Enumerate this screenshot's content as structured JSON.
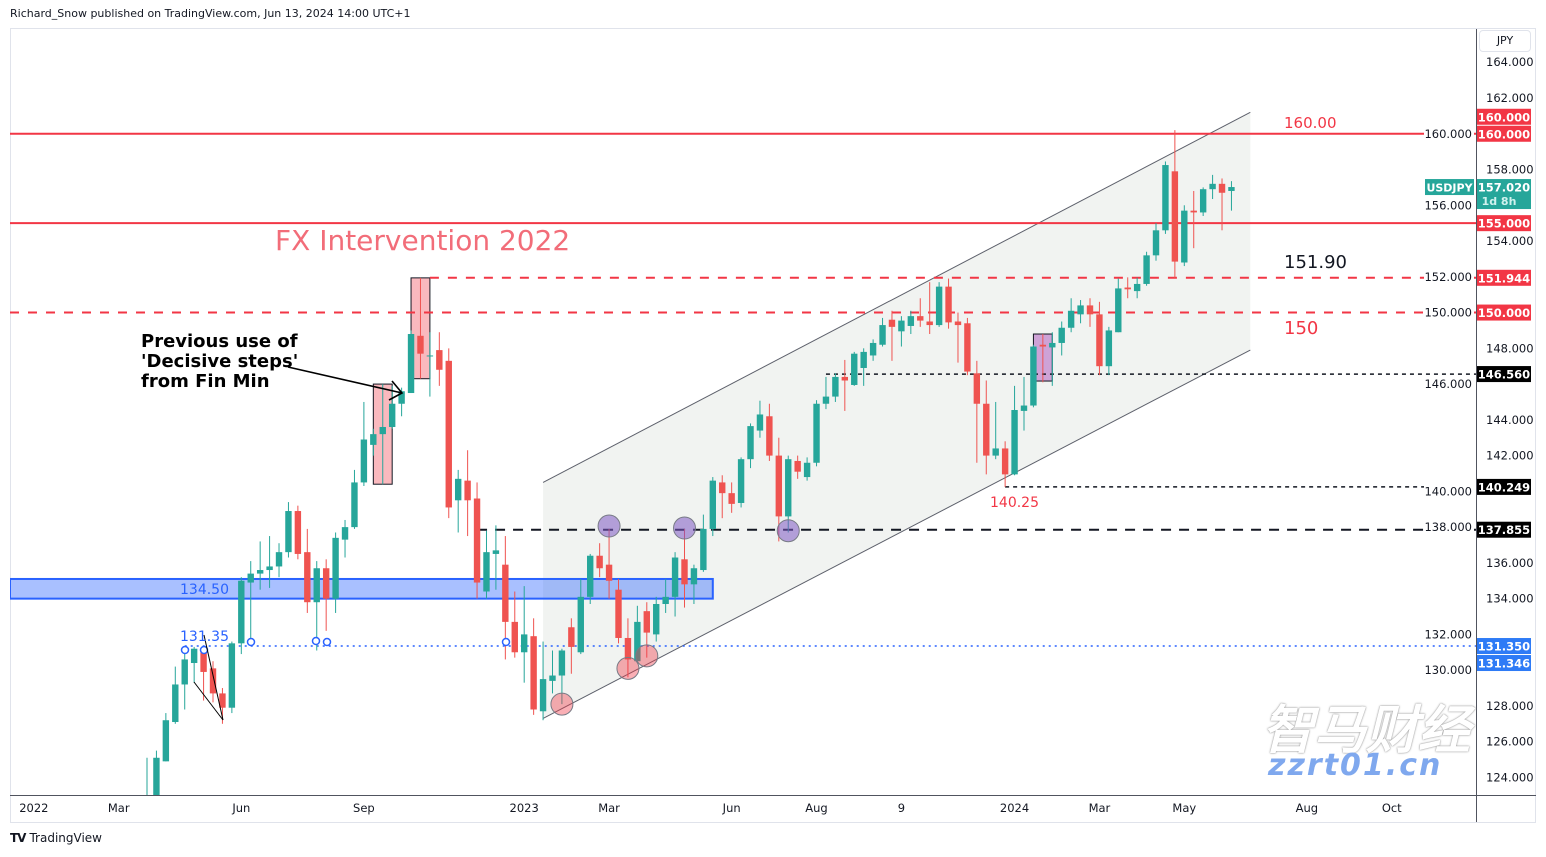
{
  "header": {
    "published": "Richard_Snow published on TradingView.com, Jun 13, 2024 14:00 UTC+1"
  },
  "footer": {
    "brand": "TradingView"
  },
  "watermark": {
    "text": "智马财经",
    "url": "zzrt01.cn"
  },
  "currency_button": "JPY",
  "colors": {
    "up": "#26a69a",
    "down": "#ef5350",
    "level_red": "#f23645",
    "support_blue": "#2962ff",
    "channel_fill": "#eef1ef"
  },
  "chart_data": {
    "type": "candlestick",
    "symbol": "USDJPY",
    "interval": "weekly",
    "ylim": [
      123,
      165
    ],
    "y_ticks": [
      124,
      126,
      128,
      130,
      132,
      134,
      136,
      138,
      140,
      142,
      144,
      146,
      148,
      150,
      152,
      154,
      156,
      158,
      160,
      162,
      164
    ],
    "x_ticks": [
      {
        "label": "2022",
        "date": "2022-01-03"
      },
      {
        "label": "Mar",
        "date": "2022-03-07"
      },
      {
        "label": "Jun",
        "date": "2022-06-06"
      },
      {
        "label": "Sep",
        "date": "2022-09-05"
      },
      {
        "label": "2023",
        "date": "2023-01-02"
      },
      {
        "label": "Mar",
        "date": "2023-03-06"
      },
      {
        "label": "Jun",
        "date": "2023-06-05"
      },
      {
        "label": "Aug",
        "date": "2023-08-07"
      },
      {
        "label": "9",
        "date": "2023-10-09"
      },
      {
        "label": "2024",
        "date": "2024-01-01"
      },
      {
        "label": "Mar",
        "date": "2024-03-04"
      },
      {
        "label": "May",
        "date": "2024-05-06"
      },
      {
        "label": "Aug",
        "date": "2024-08-05"
      },
      {
        "label": "Oct",
        "date": "2024-10-07"
      }
    ],
    "candles": [
      [
        "2022-03-28",
        119.5,
        125.1,
        119.1,
        122.1
      ],
      [
        "2022-04-04",
        122.1,
        125.5,
        121.6,
        125.1
      ],
      [
        "2022-04-11",
        124.9,
        127.6,
        124.9,
        127.2
      ],
      [
        "2022-04-18",
        127.1,
        130.2,
        127.0,
        129.2
      ],
      [
        "2022-04-25",
        129.2,
        131.3,
        127.8,
        130.6
      ],
      [
        "2022-05-02",
        130.4,
        131.3,
        129.3,
        131.2
      ],
      [
        "2022-05-09",
        131.0,
        131.35,
        128.3,
        129.9
      ],
      [
        "2022-05-16",
        130.1,
        130.5,
        128.2,
        128.7
      ],
      [
        "2022-05-23",
        128.7,
        129.0,
        127.0,
        127.9
      ],
      [
        "2022-05-30",
        127.9,
        131.6,
        127.6,
        131.5
      ],
      [
        "2022-06-06",
        131.5,
        135.2,
        130.9,
        135.0
      ],
      [
        "2022-06-13",
        134.9,
        136.1,
        131.5,
        135.4
      ],
      [
        "2022-06-20",
        135.4,
        137.2,
        134.5,
        135.6
      ],
      [
        "2022-06-27",
        135.6,
        137.5,
        134.6,
        135.8
      ],
      [
        "2022-07-04",
        135.8,
        137.1,
        135.2,
        136.6
      ],
      [
        "2022-07-11",
        136.6,
        139.4,
        136.3,
        138.9
      ],
      [
        "2022-07-18",
        138.9,
        139.2,
        136.2,
        136.5
      ],
      [
        "2022-07-25",
        136.6,
        137.9,
        133.2,
        133.8
      ],
      [
        "2022-08-01",
        133.8,
        136.1,
        131.1,
        135.7
      ],
      [
        "2022-08-08",
        135.7,
        136.2,
        132.2,
        134.0
      ],
      [
        "2022-08-15",
        134.0,
        137.7,
        133.2,
        137.4
      ],
      [
        "2022-08-22",
        137.3,
        138.4,
        136.3,
        138.0
      ],
      [
        "2022-08-29",
        138.0,
        141.2,
        137.9,
        140.5
      ],
      [
        "2022-09-05",
        140.5,
        145.0,
        140.3,
        142.9
      ],
      [
        "2022-09-12",
        142.6,
        143.5,
        142.0,
        143.2
      ],
      [
        "2022-09-19",
        143.2,
        146.0,
        140.4,
        143.6
      ],
      [
        "2022-09-26",
        143.6,
        145.9,
        143.5,
        144.9
      ],
      [
        "2022-10-03",
        144.9,
        145.8,
        144.2,
        145.6
      ],
      [
        "2022-10-10",
        145.5,
        149.0,
        145.5,
        148.8
      ],
      [
        "2022-10-17",
        148.7,
        151.94,
        146.3,
        147.7
      ],
      [
        "2022-10-24",
        147.6,
        148.9,
        145.3,
        147.6
      ],
      [
        "2022-10-31",
        147.9,
        148.9,
        145.9,
        146.8
      ],
      [
        "2022-11-07",
        147.3,
        148.0,
        138.5,
        139.1
      ],
      [
        "2022-11-14",
        139.5,
        141.2,
        137.7,
        140.7
      ],
      [
        "2022-11-21",
        140.6,
        142.3,
        137.5,
        139.5
      ],
      [
        "2022-11-28",
        139.6,
        140.5,
        134.0,
        134.9
      ],
      [
        "2022-12-05",
        134.4,
        137.8,
        134.0,
        136.6
      ],
      [
        "2022-12-12",
        136.5,
        138.1,
        134.5,
        136.7
      ],
      [
        "2022-12-19",
        135.9,
        137.5,
        130.6,
        132.7
      ],
      [
        "2022-12-26",
        132.7,
        134.4,
        130.7,
        131.0
      ],
      [
        "2023-01-02",
        131.0,
        134.7,
        129.3,
        132.0
      ],
      [
        "2023-01-09",
        131.9,
        132.9,
        127.5,
        127.8
      ],
      [
        "2023-01-16",
        127.7,
        131.6,
        127.2,
        129.5
      ],
      [
        "2023-01-23",
        129.4,
        131.1,
        128.7,
        129.7
      ],
      [
        "2023-01-30",
        129.7,
        131.2,
        128.1,
        131.1
      ],
      [
        "2023-02-06",
        132.4,
        132.9,
        129.8,
        131.3
      ],
      [
        "2023-02-13",
        131.0,
        135.1,
        130.9,
        134.1
      ],
      [
        "2023-02-20",
        134.1,
        136.5,
        133.7,
        136.4
      ],
      [
        "2023-02-27",
        136.4,
        137.1,
        135.2,
        135.7
      ],
      [
        "2023-03-06",
        135.9,
        137.9,
        134.0,
        135.0
      ],
      [
        "2023-03-13",
        134.5,
        135.1,
        131.5,
        131.8
      ],
      [
        "2023-03-20",
        131.8,
        132.9,
        129.6,
        130.6
      ],
      [
        "2023-03-27",
        130.5,
        133.6,
        130.4,
        132.7
      ],
      [
        "2023-04-03",
        133.3,
        133.8,
        130.7,
        132.1
      ],
      [
        "2023-04-10",
        132.0,
        134.1,
        131.6,
        133.7
      ],
      [
        "2023-04-17",
        133.7,
        135.1,
        133.2,
        134.1
      ],
      [
        "2023-04-24",
        134.1,
        136.6,
        133.0,
        136.3
      ],
      [
        "2023-05-01",
        136.2,
        137.9,
        133.5,
        134.8
      ],
      [
        "2023-05-08",
        134.8,
        135.9,
        133.7,
        135.7
      ],
      [
        "2023-05-15",
        135.6,
        138.7,
        135.5,
        137.9
      ],
      [
        "2023-05-22",
        137.9,
        140.8,
        137.5,
        140.6
      ],
      [
        "2023-05-29",
        140.5,
        140.9,
        138.5,
        139.9
      ],
      [
        "2023-06-05",
        139.9,
        140.5,
        138.8,
        139.3
      ],
      [
        "2023-06-12",
        139.35,
        141.9,
        139.1,
        141.8
      ],
      [
        "2023-06-19",
        141.8,
        143.8,
        141.3,
        143.65
      ],
      [
        "2023-06-26",
        143.4,
        145.07,
        143.0,
        144.3
      ],
      [
        "2023-07-03",
        144.2,
        144.9,
        141.7,
        142.0
      ],
      [
        "2023-07-10",
        142.0,
        143.0,
        137.2,
        138.6
      ],
      [
        "2023-07-17",
        138.6,
        142.0,
        137.7,
        141.8
      ],
      [
        "2023-07-24",
        141.7,
        142.0,
        140.7,
        141.1
      ],
      [
        "2023-07-31",
        140.8,
        141.9,
        140.6,
        141.6
      ],
      [
        "2023-08-07",
        141.6,
        145.1,
        141.4,
        144.9
      ],
      [
        "2023-08-14",
        144.9,
        146.4,
        144.6,
        145.3
      ],
      [
        "2023-08-21",
        145.3,
        146.6,
        145.0,
        146.4
      ],
      [
        "2023-08-28",
        146.4,
        147.35,
        144.5,
        146.2
      ],
      [
        "2023-09-04",
        145.95,
        147.8,
        145.9,
        147.7
      ],
      [
        "2023-09-11",
        146.9,
        148.0,
        145.9,
        147.8
      ],
      [
        "2023-09-18",
        147.6,
        148.5,
        147.3,
        148.3
      ],
      [
        "2023-09-25",
        148.2,
        149.7,
        148.1,
        149.3
      ],
      [
        "2023-10-02",
        149.6,
        150.1,
        147.3,
        149.2
      ],
      [
        "2023-10-09",
        148.95,
        149.8,
        148.1,
        149.55
      ],
      [
        "2023-10-16",
        149.25,
        150.1,
        148.8,
        149.8
      ],
      [
        "2023-10-23",
        149.8,
        150.8,
        149.2,
        149.55
      ],
      [
        "2023-10-30",
        149.5,
        151.7,
        148.8,
        149.3
      ],
      [
        "2023-11-06",
        149.3,
        151.7,
        149.2,
        151.45
      ],
      [
        "2023-11-13",
        151.45,
        151.9,
        149.1,
        149.45
      ],
      [
        "2023-11-20",
        149.5,
        150.0,
        147.2,
        149.3
      ],
      [
        "2023-11-27",
        149.4,
        149.7,
        146.5,
        146.7
      ],
      [
        "2023-12-04",
        146.6,
        147.3,
        141.6,
        144.9
      ],
      [
        "2023-12-11",
        144.9,
        146.2,
        140.95,
        142.0
      ],
      [
        "2023-12-18",
        142.0,
        145.0,
        141.8,
        142.4
      ],
      [
        "2023-12-25",
        142.4,
        142.8,
        140.25,
        140.95
      ],
      [
        "2024-01-01",
        140.95,
        145.9,
        140.9,
        144.55
      ],
      [
        "2024-01-08",
        144.5,
        146.4,
        143.4,
        144.8
      ],
      [
        "2024-01-15",
        144.8,
        148.2,
        144.7,
        148.1
      ],
      [
        "2024-01-22",
        148.2,
        148.8,
        146.1,
        148.1
      ],
      [
        "2024-01-29",
        148.05,
        148.9,
        145.9,
        148.3
      ],
      [
        "2024-02-05",
        148.3,
        149.5,
        147.6,
        149.15
      ],
      [
        "2024-02-12",
        149.15,
        150.8,
        148.9,
        150.1
      ],
      [
        "2024-02-19",
        149.9,
        150.7,
        149.4,
        150.4
      ],
      [
        "2024-02-26",
        150.4,
        150.8,
        149.2,
        149.9
      ],
      [
        "2024-03-04",
        149.9,
        150.6,
        146.5,
        147.0
      ],
      [
        "2024-03-11",
        147.0,
        149.2,
        146.5,
        149.0
      ],
      [
        "2024-03-18",
        148.9,
        151.9,
        148.9,
        151.35
      ],
      [
        "2024-03-25",
        151.4,
        151.97,
        150.8,
        151.3
      ],
      [
        "2024-04-01",
        151.2,
        151.95,
        150.8,
        151.6
      ],
      [
        "2024-04-08",
        151.6,
        153.4,
        151.5,
        153.2
      ],
      [
        "2024-04-15",
        153.2,
        155.0,
        152.9,
        154.6
      ],
      [
        "2024-04-22",
        154.6,
        158.45,
        154.4,
        158.25
      ],
      [
        "2024-04-29",
        157.9,
        160.2,
        151.9,
        152.85
      ],
      [
        "2024-05-06",
        152.8,
        156.0,
        152.6,
        155.7
      ],
      [
        "2024-05-13",
        155.7,
        156.8,
        153.6,
        155.6
      ],
      [
        "2024-05-20",
        155.6,
        157.0,
        155.4,
        156.9
      ],
      [
        "2024-05-27",
        156.9,
        157.7,
        156.35,
        157.2
      ],
      [
        "2024-06-03",
        157.2,
        157.5,
        154.6,
        156.7
      ],
      [
        "2024-06-10",
        156.8,
        157.35,
        155.7,
        157.02
      ]
    ],
    "last_price": {
      "symbol": "USDJPY",
      "value": "157.020",
      "countdown": "1d 8h"
    },
    "levels": [
      {
        "price": 160.0,
        "style": "solid",
        "color": "#f23645",
        "from": null,
        "axis_labels": [
          "160.000",
          "160.000"
        ]
      },
      {
        "price": 155.0,
        "style": "solid",
        "color": "#f23645",
        "from": null,
        "axis_labels": [
          "155.000"
        ]
      },
      {
        "price": 151.944,
        "style": "dashed",
        "color": "#f23645",
        "from": "2022-10-24",
        "axis_labels": [
          "151.944"
        ]
      },
      {
        "price": 150.0,
        "style": "dashed",
        "color": "#f23645",
        "from": null,
        "axis_labels": [
          "150.000"
        ]
      },
      {
        "price": 146.56,
        "style": "dotted",
        "color": "#131722",
        "from": "2023-08-14",
        "axis_labels": [
          "146.560"
        ]
      },
      {
        "price": 140.249,
        "style": "dotted",
        "color": "#131722",
        "from": "2023-12-25",
        "axis_labels": [
          "140.249"
        ]
      },
      {
        "price": 137.855,
        "style": "dashed",
        "color": "#131722",
        "from": "2022-11-28",
        "axis_labels": [
          "137.855"
        ]
      },
      {
        "price": 131.35,
        "style": "dotted",
        "color": "#2962ff",
        "from": "2022-04-25",
        "axis_labels": [
          "131.350",
          "131.346"
        ]
      }
    ],
    "support_zone": {
      "top": 135.1,
      "bottom": 134.0,
      "to": "2023-05-22"
    },
    "channel": {
      "start": "2023-01-16",
      "end": "2024-06-24",
      "upper": [
        140.5,
        161.2
      ],
      "lower": [
        127.3,
        147.9
      ]
    },
    "boxes": [
      {
        "from": "2022-09-12",
        "to": "2022-09-26",
        "high": 146.0,
        "low": 140.4,
        "color": "pink"
      },
      {
        "from": "2022-10-10",
        "to": "2022-10-24",
        "high": 151.94,
        "low": 146.3,
        "color": "pink"
      },
      {
        "from": "2024-01-15",
        "to": "2024-01-29",
        "high": 148.8,
        "low": 146.17,
        "color": "purple"
      }
    ],
    "markers": [
      {
        "date": "2023-01-30",
        "price": 128.1,
        "color": "pink"
      },
      {
        "date": "2023-03-20",
        "price": 130.1,
        "color": "pink"
      },
      {
        "date": "2023-04-03",
        "price": 130.8,
        "color": "pink"
      },
      {
        "date": "2023-03-06",
        "price": 138.06,
        "color": "purple"
      },
      {
        "date": "2023-05-01",
        "price": 137.95,
        "color": "purple"
      },
      {
        "date": "2023-07-17",
        "price": 137.8,
        "color": "purple"
      }
    ],
    "annotations": {
      "fx_intervention": "FX Intervention 2022",
      "previous_use": "Previous use of\n'Decisive steps'\nfrom Fin Min",
      "l160": "160.00",
      "l15190": "151.90",
      "l150": "150",
      "l14025": "140.25",
      "l13450": "134.50",
      "l13135": "131.35"
    }
  }
}
